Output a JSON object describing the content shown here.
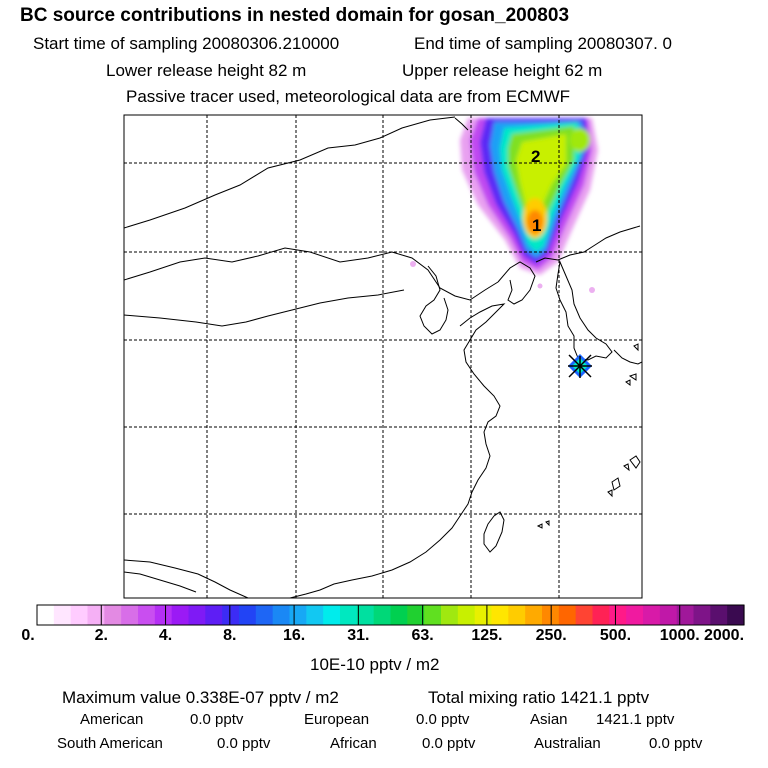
{
  "header": {
    "title": "BC  source contributions in nested domain for gosan_200803",
    "start_label": "Start time of sampling 20080306.210000",
    "end_label": "End time of sampling 20080307.     0",
    "lower_label": "Lower release height   82 m",
    "upper_label": "Upper release height   62 m",
    "tracer_note": "Passive tracer used, meteorological data are from ECMWF"
  },
  "map": {
    "markers": [
      "1",
      "2"
    ],
    "receptor_icon": "star-icon",
    "grid": true
  },
  "legend": {
    "ticks": [
      "0.",
      "2.",
      "4.",
      "8.",
      "16.",
      "31.",
      "63.",
      "125.",
      "250.",
      "500.",
      "1000.",
      "2000."
    ],
    "unit": "10E-10 pptv / m2",
    "colors": [
      "#ffffff",
      "#ffe6ff",
      "#ffccff",
      "#f5b0f5",
      "#e38ae3",
      "#d86ee8",
      "#c94ef0",
      "#b52ff5",
      "#9b1af5",
      "#7f1af5",
      "#5e1ef5",
      "#3c2cf5",
      "#2244f5",
      "#1e66f5",
      "#1a88f5",
      "#17a8f5",
      "#12c8f2",
      "#00ecec",
      "#00e8c0",
      "#00e0a0",
      "#00d878",
      "#00d050",
      "#20d030",
      "#60e020",
      "#a0e810",
      "#c8f000",
      "#e8f000",
      "#ffe600",
      "#ffcc00",
      "#ffaa00",
      "#ff8800",
      "#ff6600",
      "#ff4433",
      "#ff2255",
      "#ff1a88",
      "#f01aa0",
      "#d81aa8",
      "#c018a8",
      "#a0189a",
      "#7e1488",
      "#5a0f6e",
      "#3a0a50"
    ]
  },
  "stats": {
    "max_label": "Maximum value  0.338E-07 pptv / m2",
    "total_label": "Total mixing ratio     1421.1 pptv",
    "american": "American",
    "american_val": "0.0 pptv",
    "european": "European",
    "european_val": "0.0 pptv",
    "asian": "Asian",
    "asian_val": "1421.1 pptv",
    "south_american": "South American",
    "south_american_val": "0.0 pptv",
    "african": "African",
    "african_val": "0.0 pptv",
    "australian": "Australian",
    "australian_val": "0.0 pptv"
  }
}
